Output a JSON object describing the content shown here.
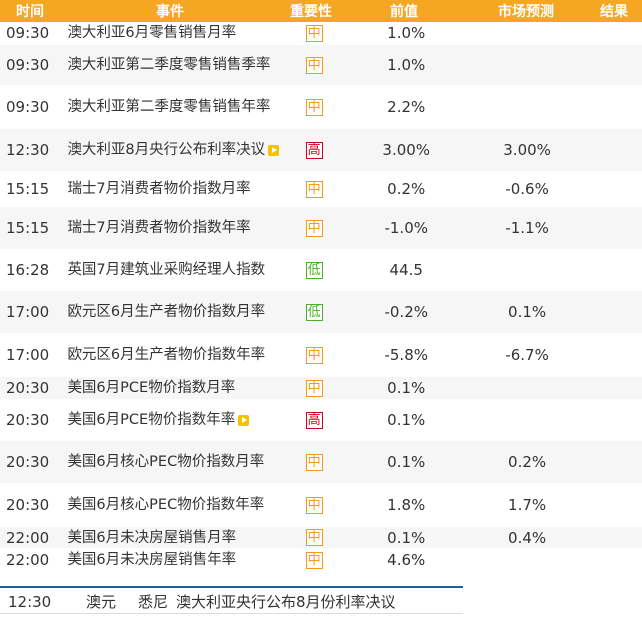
{
  "header": {
    "time": "时间",
    "event": "事件",
    "importance": "重要性",
    "previous": "前值",
    "forecast": "市场预测",
    "result": "结果"
  },
  "colors": {
    "header_bg": "#f5a623",
    "mid": "#f39c12",
    "high": "#d0021b",
    "low": "#4caf2a",
    "bottom_border": "#1f5fa8"
  },
  "rows": [
    {
      "time": "09:30",
      "event": "澳大利亚6月零售销售月率",
      "importance": "中",
      "level": "mid",
      "previous": "1.0%",
      "forecast": "",
      "result": "",
      "play": false
    },
    {
      "time": "09:30",
      "event": "澳大利亚第二季度零售销售季率",
      "importance": "中",
      "level": "mid",
      "previous": "1.0%",
      "forecast": "",
      "result": "",
      "play": false
    },
    {
      "time": "09:30",
      "event": "澳大利亚第二季度零售销售年率",
      "importance": "中",
      "level": "mid",
      "previous": "2.2%",
      "forecast": "",
      "result": "",
      "play": false
    },
    {
      "time": "12:30",
      "event": "澳大利亚8月央行公布利率决议",
      "importance": "高",
      "level": "high",
      "previous": "3.00%",
      "forecast": "3.00%",
      "result": "",
      "play": true
    },
    {
      "time": "15:15",
      "event": "瑞士7月消费者物价指数月率",
      "importance": "中",
      "level": "mid",
      "previous": "0.2%",
      "forecast": "-0.6%",
      "result": "",
      "play": false
    },
    {
      "time": "15:15",
      "event": "瑞士7月消费者物价指数年率",
      "importance": "中",
      "level": "mid",
      "previous": "-1.0%",
      "forecast": "-1.1%",
      "result": "",
      "play": false
    },
    {
      "time": "16:28",
      "event": "英国7月建筑业采购经理人指数",
      "importance": "低",
      "level": "low",
      "previous": "44.5",
      "forecast": "",
      "result": "",
      "play": false
    },
    {
      "time": "17:00",
      "event": "欧元区6月生产者物价指数月率",
      "importance": "低",
      "level": "low",
      "previous": "-0.2%",
      "forecast": "0.1%",
      "result": "",
      "play": false
    },
    {
      "time": "17:00",
      "event": "欧元区6月生产者物价指数年率",
      "importance": "中",
      "level": "mid",
      "previous": "-5.8%",
      "forecast": "-6.7%",
      "result": "",
      "play": false
    },
    {
      "time": "20:30",
      "event": "美国6月PCE物价指数月率",
      "importance": "中",
      "level": "mid",
      "previous": "0.1%",
      "forecast": "",
      "result": "",
      "play": false
    },
    {
      "time": "20:30",
      "event": "美国6月PCE物价指数年率",
      "importance": "高",
      "level": "high",
      "previous": "0.1%",
      "forecast": "",
      "result": "",
      "play": true
    },
    {
      "time": "20:30",
      "event": "美国6月核心PEC物价指数月率",
      "importance": "中",
      "level": "mid",
      "previous": "0.1%",
      "forecast": "0.2%",
      "result": "",
      "play": false
    },
    {
      "time": "20:30",
      "event": "美国6月核心PEC物价指数年率",
      "importance": "中",
      "level": "mid",
      "previous": "1.8%",
      "forecast": "1.7%",
      "result": "",
      "play": false
    },
    {
      "time": "22:00",
      "event": "美国6月未决房屋销售月率",
      "importance": "中",
      "level": "mid",
      "previous": "0.1%",
      "forecast": "0.4%",
      "result": "",
      "play": false
    },
    {
      "time": "22:00",
      "event": "美国6月未决房屋销售年率",
      "importance": "中",
      "level": "mid",
      "previous": "4.6%",
      "forecast": "",
      "result": "",
      "play": false
    }
  ],
  "bottom": {
    "time": "12:30",
    "currency": "澳元",
    "location": "悉尼",
    "event": "澳大利亚央行公布8月份利率决议"
  }
}
